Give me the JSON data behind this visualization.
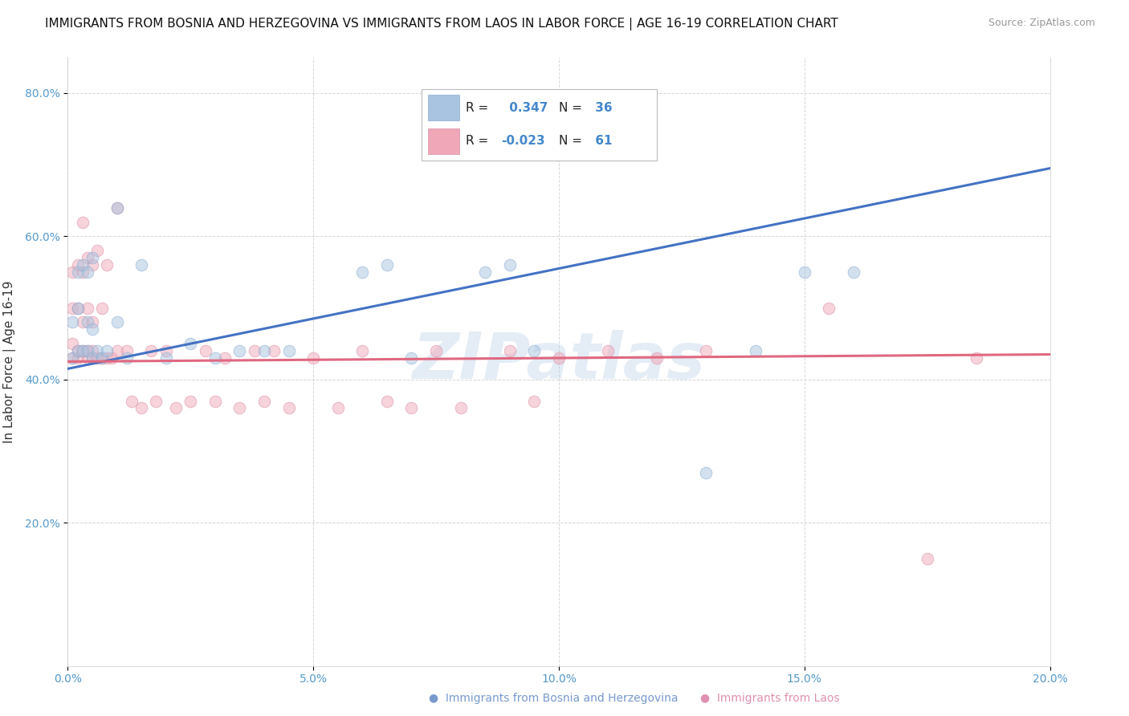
{
  "title": "IMMIGRANTS FROM BOSNIA AND HERZEGOVINA VS IMMIGRANTS FROM LAOS IN LABOR FORCE | AGE 16-19 CORRELATION CHART",
  "source": "Source: ZipAtlas.com",
  "ylabel": "In Labor Force | Age 16-19",
  "xlim": [
    0.0,
    0.2
  ],
  "ylim": [
    0.0,
    0.85
  ],
  "xticks": [
    0.0,
    0.05,
    0.1,
    0.15,
    0.2
  ],
  "yticks": [
    0.2,
    0.4,
    0.6,
    0.8
  ],
  "xticklabels": [
    "0.0%",
    "5.0%",
    "10.0%",
    "15.0%",
    "20.0%"
  ],
  "yticklabels": [
    "20.0%",
    "40.0%",
    "60.0%",
    "80.0%"
  ],
  "bosnia_color": "#a8c4e0",
  "laos_color": "#f0a8b8",
  "bosnia_line_color": "#4472c4",
  "laos_line_color": "#e06880",
  "bosnia_R": 0.347,
  "bosnia_N": 36,
  "laos_R": -0.023,
  "laos_N": 61,
  "bosnia_line_x0": 0.0,
  "bosnia_line_y0": 0.415,
  "bosnia_line_x1": 0.2,
  "bosnia_line_y1": 0.695,
  "laos_line_x0": 0.0,
  "laos_line_y0": 0.425,
  "laos_line_x1": 0.2,
  "laos_line_y1": 0.435,
  "bosnia_x": [
    0.001,
    0.001,
    0.002,
    0.002,
    0.002,
    0.003,
    0.003,
    0.004,
    0.004,
    0.004,
    0.005,
    0.005,
    0.005,
    0.006,
    0.007,
    0.008,
    0.01,
    0.01,
    0.012,
    0.015,
    0.02,
    0.025,
    0.03,
    0.035,
    0.04,
    0.045,
    0.06,
    0.065,
    0.07,
    0.085,
    0.09,
    0.095,
    0.13,
    0.14,
    0.15,
    0.16
  ],
  "bosnia_y": [
    0.43,
    0.48,
    0.44,
    0.5,
    0.55,
    0.44,
    0.56,
    0.44,
    0.48,
    0.55,
    0.43,
    0.47,
    0.57,
    0.44,
    0.43,
    0.44,
    0.48,
    0.64,
    0.43,
    0.56,
    0.43,
    0.45,
    0.43,
    0.44,
    0.44,
    0.44,
    0.55,
    0.56,
    0.43,
    0.55,
    0.56,
    0.44,
    0.27,
    0.44,
    0.55,
    0.55
  ],
  "laos_x": [
    0.001,
    0.001,
    0.001,
    0.001,
    0.002,
    0.002,
    0.002,
    0.002,
    0.003,
    0.003,
    0.003,
    0.003,
    0.004,
    0.004,
    0.004,
    0.004,
    0.005,
    0.005,
    0.005,
    0.005,
    0.006,
    0.006,
    0.007,
    0.007,
    0.008,
    0.008,
    0.009,
    0.01,
    0.01,
    0.012,
    0.013,
    0.015,
    0.017,
    0.018,
    0.02,
    0.022,
    0.025,
    0.028,
    0.03,
    0.032,
    0.035,
    0.038,
    0.04,
    0.042,
    0.045,
    0.05,
    0.055,
    0.06,
    0.065,
    0.07,
    0.075,
    0.08,
    0.09,
    0.095,
    0.1,
    0.11,
    0.12,
    0.13,
    0.155,
    0.175,
    0.185
  ],
  "laos_y": [
    0.43,
    0.45,
    0.5,
    0.55,
    0.43,
    0.44,
    0.5,
    0.56,
    0.44,
    0.48,
    0.55,
    0.62,
    0.43,
    0.44,
    0.5,
    0.57,
    0.43,
    0.44,
    0.48,
    0.56,
    0.43,
    0.58,
    0.43,
    0.5,
    0.43,
    0.56,
    0.43,
    0.44,
    0.64,
    0.44,
    0.37,
    0.36,
    0.44,
    0.37,
    0.44,
    0.36,
    0.37,
    0.44,
    0.37,
    0.43,
    0.36,
    0.44,
    0.37,
    0.44,
    0.36,
    0.43,
    0.36,
    0.44,
    0.37,
    0.36,
    0.44,
    0.36,
    0.44,
    0.37,
    0.43,
    0.44,
    0.43,
    0.44,
    0.5,
    0.15,
    0.43
  ],
  "watermark_text": "ZIPatlas",
  "background_color": "#ffffff",
  "grid_color": "#cccccc",
  "dot_size": 110,
  "dot_alpha": 0.5,
  "title_fontsize": 11,
  "axis_label_fontsize": 11,
  "tick_fontsize": 10,
  "legend_label_bosnia": "Immigrants from Bosnia and Herzegovina",
  "legend_label_laos": "Immigrants from Laos"
}
